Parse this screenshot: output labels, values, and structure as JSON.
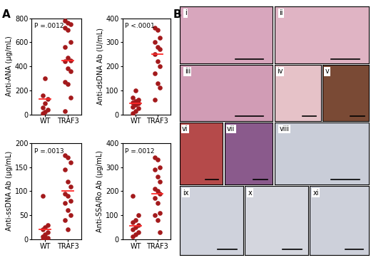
{
  "chart_data": [
    {
      "type": "scatter",
      "ylabel": "Anti-ANA (µg/mL)",
      "annotation": "P =.0012",
      "categories": [
        "WT",
        "TRAF3"
      ],
      "values": [
        [
          10,
          20,
          40,
          55,
          90,
          130,
          160,
          300
        ],
        [
          780,
          760,
          750,
          720,
          700,
          600,
          560,
          470,
          450,
          440,
          380,
          360,
          270,
          250,
          140,
          30
        ]
      ],
      "means": [
        125,
        450
      ],
      "color": "#a3191b",
      "ylim": [
        0,
        800
      ],
      "yticks": [
        0,
        200,
        400,
        600,
        800
      ]
    },
    {
      "type": "scatter",
      "ylabel": "Anti-dsDNA Ab (U/mL)",
      "annotation": "P <.0001",
      "categories": [
        "WT",
        "TRAF3"
      ],
      "values": [
        [
          5,
          15,
          25,
          30,
          40,
          45,
          50,
          55,
          60,
          70,
          100
        ],
        [
          360,
          350,
          320,
          300,
          280,
          270,
          250,
          220,
          200,
          170,
          130,
          110,
          60
        ]
      ],
      "means": [
        45,
        250
      ],
      "color": "#a3191b",
      "ylim": [
        0,
        400
      ],
      "yticks": [
        0,
        100,
        200,
        300,
        400
      ]
    },
    {
      "type": "scatter",
      "ylabel": "Anti-ssDNA Ab (µg/mL)",
      "annotation": "P =.0013",
      "categories": [
        "WT",
        "TRAF3"
      ],
      "values": [
        [
          0,
          2,
          3,
          5,
          10,
          15,
          20,
          25,
          30,
          90
        ],
        [
          175,
          170,
          160,
          145,
          120,
          110,
          95,
          90,
          80,
          75,
          60,
          50,
          40,
          20
        ]
      ],
      "means": [
        20,
        100
      ],
      "color": "#a3191b",
      "ylim": [
        0,
        200
      ],
      "yticks": [
        0,
        50,
        100,
        150,
        200
      ]
    },
    {
      "type": "scatter",
      "ylabel": "Anti-SSA/Ro Ab (µg/mL)",
      "annotation": "P =.0012",
      "categories": [
        "WT",
        "TRAF3"
      ],
      "values": [
        [
          10,
          20,
          30,
          40,
          50,
          60,
          70,
          80,
          100,
          180
        ],
        [
          340,
          330,
          300,
          290,
          260,
          240,
          210,
          200,
          190,
          170,
          150,
          110,
          100,
          80,
          30
        ]
      ],
      "means": [
        55,
        190
      ],
      "color": "#a3191b",
      "ylim": [
        0,
        400
      ],
      "yticks": [
        0,
        100,
        200,
        300,
        400
      ]
    }
  ],
  "panel_labels": [
    "A",
    "B"
  ],
  "micrographs": {
    "labels": [
      "i",
      "ii",
      "iii",
      "iv",
      "v",
      "vi",
      "vii",
      "viii",
      "ix",
      "x",
      "xi"
    ]
  }
}
